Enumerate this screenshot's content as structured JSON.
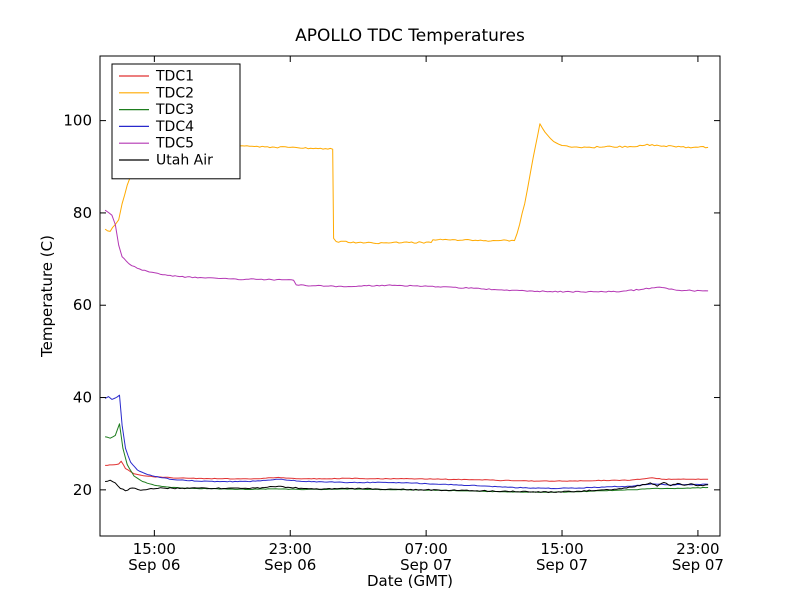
{
  "chart_data": {
    "type": "line",
    "title": "APOLLO TDC Temperatures",
    "xlabel": "Date (GMT)",
    "ylabel": "Temperature (C)",
    "x_unit": "hours since Sep 06 00:00 GMT",
    "xlim": [
      11.8,
      48.3
    ],
    "ylim": [
      10,
      114
    ],
    "yticks": [
      20,
      40,
      60,
      80,
      100
    ],
    "xticks": [
      {
        "t": 15,
        "time": "15:00",
        "date": "Sep 06"
      },
      {
        "t": 23,
        "time": "23:00",
        "date": "Sep 06"
      },
      {
        "t": 31,
        "time": "07:00",
        "date": "Sep 07"
      },
      {
        "t": 39,
        "time": "15:00",
        "date": "Sep 07"
      },
      {
        "t": 47,
        "time": "23:00",
        "date": "Sep 07"
      }
    ],
    "grid": false,
    "legend_position": "upper-left",
    "series": [
      {
        "name": "TDC1",
        "color": "#e13232",
        "noise": 0.07,
        "points": [
          [
            12.1,
            25.3
          ],
          [
            12.5,
            25.4
          ],
          [
            12.9,
            25.6
          ],
          [
            13.05,
            26.2
          ],
          [
            13.3,
            24.6
          ],
          [
            13.8,
            23.5
          ],
          [
            14.5,
            23.0
          ],
          [
            15.5,
            22.7
          ],
          [
            17,
            22.5
          ],
          [
            19,
            22.4
          ],
          [
            21,
            22.4
          ],
          [
            22.3,
            22.7
          ],
          [
            23.5,
            22.4
          ],
          [
            25,
            22.4
          ],
          [
            26.5,
            22.5
          ],
          [
            28,
            22.4
          ],
          [
            30,
            22.4
          ],
          [
            32,
            22.3
          ],
          [
            34,
            22.2
          ],
          [
            36,
            22.0
          ],
          [
            37.5,
            21.9
          ],
          [
            39,
            21.9
          ],
          [
            41,
            22.0
          ],
          [
            43,
            22.1
          ],
          [
            44.3,
            22.6
          ],
          [
            45,
            22.3
          ],
          [
            46,
            22.3
          ],
          [
            47.6,
            22.3
          ]
        ]
      },
      {
        "name": "TDC2",
        "color": "#ffaa00",
        "noise": 0.18,
        "points": [
          [
            12.1,
            76.5
          ],
          [
            12.4,
            76.0
          ],
          [
            12.7,
            77.5
          ],
          [
            12.9,
            78.5
          ],
          [
            13.1,
            82
          ],
          [
            13.4,
            86
          ],
          [
            13.7,
            89
          ],
          [
            14.0,
            91
          ],
          [
            14.4,
            93
          ],
          [
            15.0,
            94
          ],
          [
            16.0,
            94.3
          ],
          [
            18.0,
            94.2
          ],
          [
            20.0,
            94.5
          ],
          [
            21.5,
            94.3
          ],
          [
            23.0,
            94.2
          ],
          [
            24.5,
            94.0
          ],
          [
            25.5,
            93.8
          ],
          [
            25.55,
            74.5
          ],
          [
            25.7,
            73.8
          ],
          [
            27.0,
            73.6
          ],
          [
            28.5,
            73.5
          ],
          [
            30.0,
            73.6
          ],
          [
            31.3,
            73.6
          ],
          [
            31.4,
            74.2
          ],
          [
            33.0,
            74.1
          ],
          [
            34.5,
            74.0
          ],
          [
            36.2,
            74.0
          ],
          [
            36.35,
            75.5
          ],
          [
            36.8,
            82
          ],
          [
            37.3,
            92
          ],
          [
            37.7,
            99.3
          ],
          [
            38.0,
            97.5
          ],
          [
            38.5,
            95.5
          ],
          [
            39.0,
            94.6
          ],
          [
            40.0,
            94.2
          ],
          [
            41.5,
            94.3
          ],
          [
            43.0,
            94.4
          ],
          [
            44.3,
            94.8
          ],
          [
            45.0,
            94.5
          ],
          [
            46.0,
            94.3
          ],
          [
            47.6,
            94.2
          ]
        ]
      },
      {
        "name": "TDC3",
        "color": "#1e7d1e",
        "noise": 0.06,
        "points": [
          [
            12.1,
            31.5
          ],
          [
            12.4,
            31.2
          ],
          [
            12.7,
            31.8
          ],
          [
            12.95,
            34.3
          ],
          [
            13.15,
            29
          ],
          [
            13.4,
            25.5
          ],
          [
            13.8,
            23
          ],
          [
            14.3,
            21.8
          ],
          [
            15.0,
            21.0
          ],
          [
            16.0,
            20.5
          ],
          [
            17.5,
            20.3
          ],
          [
            19,
            20.2
          ],
          [
            20.5,
            20.1
          ],
          [
            22,
            20.2
          ],
          [
            23.5,
            20.1
          ],
          [
            25,
            20.1
          ],
          [
            26.5,
            20.2
          ],
          [
            28,
            20.1
          ],
          [
            30,
            20.0
          ],
          [
            32,
            19.9
          ],
          [
            34,
            19.7
          ],
          [
            35.5,
            19.6
          ],
          [
            37,
            19.5
          ],
          [
            38.5,
            19.5
          ],
          [
            40,
            19.6
          ],
          [
            41.5,
            19.8
          ],
          [
            43,
            20.0
          ],
          [
            44.3,
            20.3
          ],
          [
            45.5,
            20.3
          ],
          [
            47.6,
            20.5
          ]
        ]
      },
      {
        "name": "TDC4",
        "color": "#2929cc",
        "noise": 0.08,
        "points": [
          [
            12.1,
            39.8
          ],
          [
            12.3,
            40.2
          ],
          [
            12.5,
            39.6
          ],
          [
            12.7,
            39.9
          ],
          [
            12.95,
            40.5
          ],
          [
            13.1,
            34
          ],
          [
            13.3,
            29
          ],
          [
            13.6,
            26
          ],
          [
            14.0,
            24.3
          ],
          [
            14.6,
            23.3
          ],
          [
            15.3,
            22.7
          ],
          [
            16.2,
            22.2
          ],
          [
            17.5,
            21.9
          ],
          [
            19,
            21.8
          ],
          [
            20.5,
            21.8
          ],
          [
            22.0,
            22.2
          ],
          [
            22.5,
            22.3
          ],
          [
            23.5,
            21.9
          ],
          [
            25,
            21.7
          ],
          [
            26.5,
            21.6
          ],
          [
            28,
            21.6
          ],
          [
            30,
            21.5
          ],
          [
            32,
            21.2
          ],
          [
            34,
            20.9
          ],
          [
            35.5,
            20.6
          ],
          [
            37,
            20.4
          ],
          [
            38.5,
            20.3
          ],
          [
            40,
            20.4
          ],
          [
            41.5,
            20.6
          ],
          [
            43,
            20.8
          ],
          [
            44.3,
            21.3
          ],
          [
            45.2,
            21.1
          ],
          [
            46.2,
            21.1
          ],
          [
            47.6,
            21.2
          ]
        ]
      },
      {
        "name": "TDC5",
        "color": "#b437b4",
        "noise": 0.12,
        "points": [
          [
            12.1,
            80.6
          ],
          [
            12.3,
            80.1
          ],
          [
            12.5,
            79.5
          ],
          [
            12.7,
            77.5
          ],
          [
            12.9,
            73
          ],
          [
            13.1,
            70.5
          ],
          [
            13.5,
            69
          ],
          [
            14.0,
            68
          ],
          [
            14.7,
            67.2
          ],
          [
            15.5,
            66.6
          ],
          [
            16.5,
            66.2
          ],
          [
            18.0,
            65.9
          ],
          [
            19.5,
            65.7
          ],
          [
            21.0,
            65.6
          ],
          [
            22.5,
            65.5
          ],
          [
            23.2,
            65.4
          ],
          [
            23.35,
            64.4
          ],
          [
            24.5,
            64.2
          ],
          [
            26.0,
            64.1
          ],
          [
            27.5,
            64.2
          ],
          [
            29.0,
            64.3
          ],
          [
            30.5,
            64.2
          ],
          [
            32.0,
            64.0
          ],
          [
            33.5,
            63.7
          ],
          [
            35.0,
            63.4
          ],
          [
            36.5,
            63.2
          ],
          [
            38.0,
            63.0
          ],
          [
            39.5,
            62.9
          ],
          [
            41.0,
            62.9
          ],
          [
            42.5,
            63.0
          ],
          [
            43.8,
            63.5
          ],
          [
            44.6,
            63.9
          ],
          [
            45.3,
            63.5
          ],
          [
            46.2,
            63.2
          ],
          [
            47.6,
            63.1
          ]
        ]
      },
      {
        "name": "Utah Air",
        "color": "#000000",
        "noise": 0.12,
        "points": [
          [
            12.1,
            21.8
          ],
          [
            12.4,
            22.1
          ],
          [
            12.7,
            21.5
          ],
          [
            13.0,
            20.3
          ],
          [
            13.3,
            19.8
          ],
          [
            13.7,
            20.4
          ],
          [
            14.2,
            19.9
          ],
          [
            14.8,
            20.3
          ],
          [
            15.5,
            20.4
          ],
          [
            16.5,
            20.3
          ],
          [
            17.5,
            20.4
          ],
          [
            18.5,
            20.3
          ],
          [
            19.5,
            20.4
          ],
          [
            20.5,
            20.3
          ],
          [
            21.5,
            20.5
          ],
          [
            22.3,
            20.8
          ],
          [
            23.0,
            20.5
          ],
          [
            23.8,
            20.3
          ],
          [
            25,
            20.2
          ],
          [
            26.5,
            20.3
          ],
          [
            28,
            20.2
          ],
          [
            29.5,
            20.1
          ],
          [
            31,
            20.0
          ],
          [
            32.5,
            19.9
          ],
          [
            34,
            19.8
          ],
          [
            35.5,
            19.7
          ],
          [
            37,
            19.6
          ],
          [
            38.5,
            19.5
          ],
          [
            40,
            19.7
          ],
          [
            41.5,
            20.0
          ],
          [
            42.8,
            20.4
          ],
          [
            43.6,
            20.9
          ],
          [
            44.2,
            21.5
          ],
          [
            44.6,
            20.8
          ],
          [
            45.0,
            21.6
          ],
          [
            45.4,
            20.9
          ],
          [
            45.8,
            21.4
          ],
          [
            46.2,
            21.0
          ],
          [
            46.6,
            21.3
          ],
          [
            47.0,
            20.9
          ],
          [
            47.6,
            21.1
          ]
        ]
      }
    ]
  }
}
